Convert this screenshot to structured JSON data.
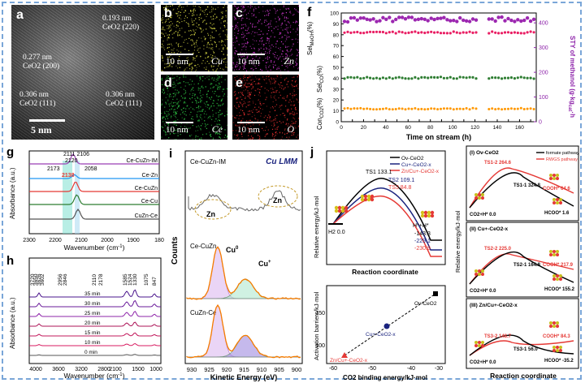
{
  "panels": {
    "a": {
      "label": "a",
      "ann1": "0.193 nm",
      "ann1b": "CeO2 (220)",
      "ann2": "0.277 nm",
      "ann2b": "CeO2 (200)",
      "ann3": "0.306 nm",
      "ann3b": "CeO2 (111)",
      "ann4": "0.306 nm",
      "ann4b": "CeO2 (111)",
      "scale": "5 nm"
    },
    "b": {
      "label": "b",
      "element": "Cu",
      "scale": "10 nm",
      "color": "#e8e84a"
    },
    "c": {
      "label": "c",
      "element": "Zn",
      "scale": "10 nm",
      "color": "#d63ad6"
    },
    "d": {
      "label": "d",
      "element": "Ce",
      "scale": "10 nm",
      "color": "#33d64a"
    },
    "e": {
      "label": "e",
      "element": "O",
      "scale": "10 nm",
      "color": "#e83030"
    },
    "f": {
      "label": "f",
      "xlabel": "Time on stream (h)",
      "yleft1": "Sel",
      "yleft1sub": "MeOH",
      "yleft2": "Sel",
      "yleft2sub": "CO",
      "yleft3": "Con",
      "yleft3sub": "CO2",
      "yunit": "(%)",
      "yright": "STY of methanol (g·kg",
      "yrightsub": "cat",
      "yright2": "·h",
      "ticksLeft": [
        "0",
        "10",
        "20",
        "30",
        "40",
        "50",
        "60",
        "70",
        "80",
        "90",
        "100"
      ],
      "ticksRight": [
        "0",
        "100",
        "200",
        "300",
        "400"
      ],
      "ticksX": [
        "0",
        "10",
        "20",
        "30",
        "40",
        "50",
        "60",
        "70",
        "80",
        "90",
        "100",
        "110",
        "120",
        "130",
        "140",
        "150",
        "160",
        "170"
      ]
    },
    "g": {
      "label": "g",
      "ylabel": "Absorbance (a.u.)",
      "xlabel": "Wavenumber (cm",
      "xlabelsup": "-1",
      "ticks": [
        "2300",
        "2200",
        "2100",
        "2000",
        "1900",
        "180"
      ],
      "peaks": [
        "2111",
        "2106",
        "2120",
        "2173",
        "2138",
        "2058"
      ],
      "series": [
        "Ce-CuZn-IM",
        "Ce-Zn",
        "Ce-CuZn",
        "Ce-Cu",
        "CuZn-Ce"
      ],
      "colors": [
        "#9b3fb5",
        "#2196f3",
        "#e53935",
        "#2e7d32",
        "#555555"
      ]
    },
    "h": {
      "label": "h",
      "ylabel": "Absorbance (a.u.)",
      "xlabel": "Wavenumber (cm",
      "xlabelsup": "-1",
      "ticks": [
        "4000",
        "3600",
        "3200",
        "2800",
        "2100",
        "1500",
        "1000"
      ],
      "peaks": [
        "3720",
        "3650",
        "3626",
        "3602",
        "2956",
        "2846",
        "2110",
        "2178",
        "1585",
        "1524",
        "1330",
        "1075",
        "847"
      ],
      "series": [
        "35 min",
        "30 min",
        "25 min",
        "20 min",
        "15 min",
        "10 min",
        "0 min"
      ]
    },
    "i": {
      "label": "i",
      "title": "Cu LMM",
      "xlabel": "Kinetic Energy (eV)",
      "ylabel": "Counts",
      "ticks": [
        "930",
        "925",
        "920",
        "915",
        "910",
        "905",
        "900"
      ],
      "s1": "Ce-CuZn-IM",
      "s2": "Ce-CuZn",
      "s3": "CuZn-Ce",
      "zn": "Zn",
      "cu0": "Cu",
      "cu0sup": "0",
      "cup": "Cu",
      "cupsup": "+"
    },
    "j": {
      "label": "j",
      "xlabel1": "Reaction coordinate",
      "ylabel1": "Relative energy/kJ·mol",
      "legend": [
        "Ov-CeO2",
        "Cu+-CeO2-x",
        "Zn/Cu+-CeO2-x"
      ],
      "ts1": "TS1 133.1",
      "ts2": "TS2 109.1",
      "ts3": "TS3 84.8",
      "h2": "H2 0.0",
      "hh": "H*+H*",
      "v1": "-143.3",
      "v2": "-229.1",
      "v3": "-230.9",
      "xlabel2": "CO2 binding energy/kJ·mol",
      "ylabel2": "Activation barriers/kJ·mol",
      "ticks2x": [
        "-60",
        "-50",
        "-40",
        "-30"
      ],
      "ticks2y": [
        "100",
        "150"
      ],
      "pt1": "Ov-CeO2",
      "pt2": "Cu+-CeO2-x",
      "pt3": "Zn/Cu+-CeO2-x"
    },
    "k": {
      "xlabel": "Reaction coordinate",
      "ylabel": "Relative energy/kJ·mol",
      "leg1": "formate pathway",
      "leg2": "RWGS pathway",
      "s1": "(I) Ov-CeO2",
      "s2": "(II) Cu+-CeO2-x",
      "s3": "(III) Zn/Cu+-CeO2-x",
      "s1ts2": "TS1-2 264.6",
      "s1ts1": "TS1-1 324.8",
      "s1c": "COOH* 64.6",
      "s1h": "HCOO* 1.6",
      "s1z": "CO2+H* 0.0",
      "s2ts2": "TS2-2 225.0",
      "s2ts1": "TS2-1 164.8",
      "s2c": "COOH* 217.9",
      "s2h": "HCOO* 155.2",
      "s2z": "CO2+H* 0.0",
      "s3ts2": "TS3-2 148.7",
      "s3ts1": "TS3-1 56.0",
      "s3c": "COOH* 84.3",
      "s3h": "HCOO* -35.2",
      "s3z": "CO2+H* 0.0"
    }
  }
}
